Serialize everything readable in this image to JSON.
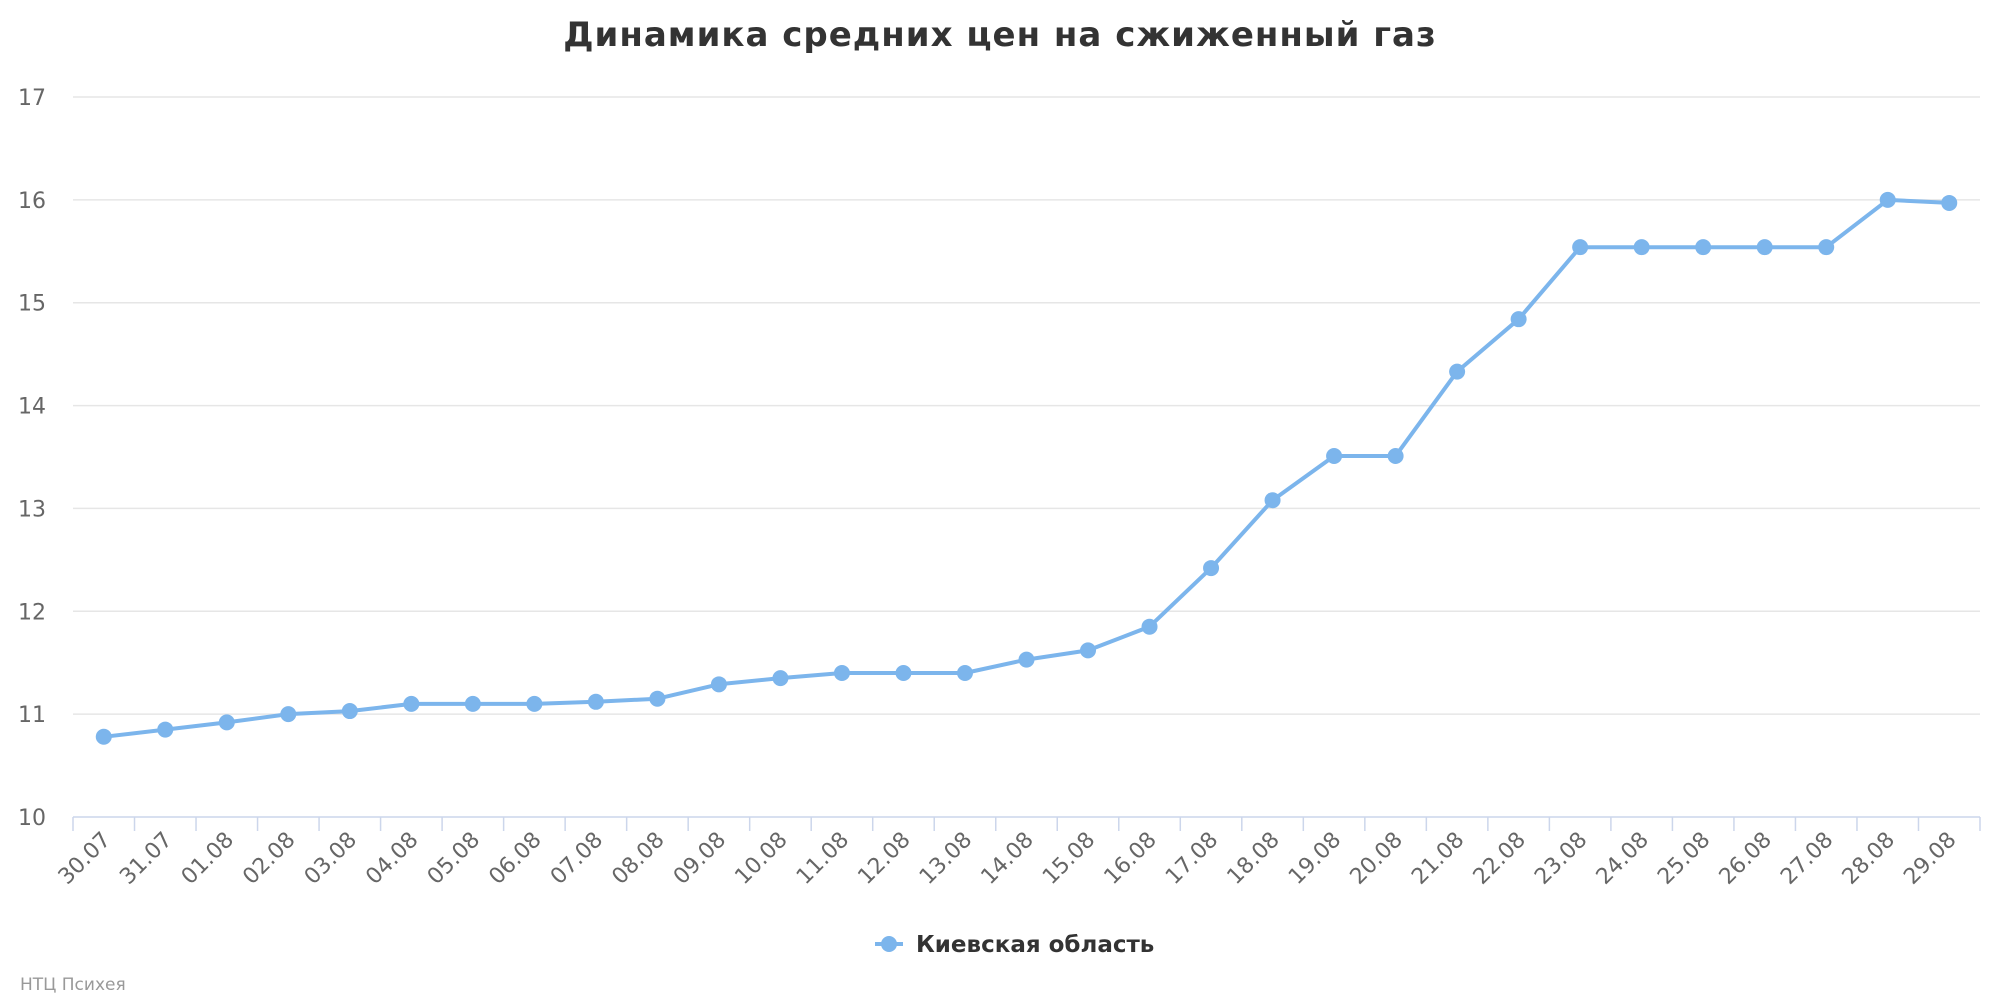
{
  "colors": {
    "series": "#7cb5ec",
    "grid": "#e6e6e6",
    "axis": "#ccd6eb"
  },
  "credit": "НТЦ Психея",
  "chart_data": {
    "type": "line",
    "title": "Динамика средних цен на сжиженный газ",
    "xlabel": "",
    "ylabel": "",
    "ylim": [
      10,
      17
    ],
    "yticks": [
      10,
      11,
      12,
      13,
      14,
      15,
      16,
      17
    ],
    "grid": true,
    "legend_position": "bottom-center",
    "categories": [
      "30.07",
      "31.07",
      "01.08",
      "02.08",
      "03.08",
      "04.08",
      "05.08",
      "06.08",
      "07.08",
      "08.08",
      "09.08",
      "10.08",
      "11.08",
      "12.08",
      "13.08",
      "14.08",
      "15.08",
      "16.08",
      "17.08",
      "18.08",
      "19.08",
      "20.08",
      "21.08",
      "22.08",
      "23.08",
      "24.08",
      "25.08",
      "26.08",
      "27.08",
      "28.08",
      "29.08"
    ],
    "series": [
      {
        "name": "Киевская область",
        "values": [
          10.78,
          10.85,
          10.92,
          11.0,
          11.03,
          11.1,
          11.1,
          11.1,
          11.12,
          11.15,
          11.29,
          11.35,
          11.4,
          11.4,
          11.4,
          11.53,
          11.62,
          11.85,
          12.42,
          13.08,
          13.51,
          13.51,
          14.33,
          14.84,
          15.54,
          15.54,
          15.54,
          15.54,
          15.54,
          16.0,
          15.97
        ]
      }
    ]
  }
}
